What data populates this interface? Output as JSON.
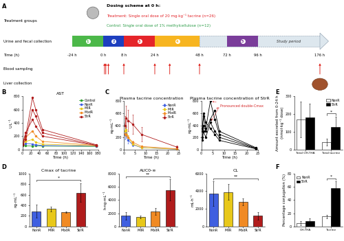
{
  "diagram": {
    "panel": "A",
    "header": "Dosing scheme at 0 h:",
    "treatment": {
      "text": "Treatment: Single oral dose of 20 mg·kg⁻¹ tacrine (n=26)",
      "color": "#e3262b"
    },
    "control": {
      "text": "Control: Single oral dose of 1% methylcellulose (n=12)",
      "color": "#2e9e4a"
    },
    "row_labels": [
      "Treatment groups",
      "Urine and fecal collection",
      "Time (h)",
      "Blood sampling",
      "Liver collection"
    ],
    "time_points": [
      {
        "value": -24,
        "label": "-24 h"
      },
      {
        "value": 0,
        "label": "0 h"
      },
      {
        "value": 8,
        "label": "8 h"
      },
      {
        "value": 24,
        "label": "24 h"
      },
      {
        "value": 48,
        "label": "48 h"
      },
      {
        "value": 72,
        "label": "72 h"
      },
      {
        "value": 96,
        "label": "96 h"
      },
      {
        "value": 176,
        "label": "176 h"
      }
    ],
    "segments": [
      {
        "label": "1",
        "start": -24,
        "end": 0,
        "color": "#4cb849"
      },
      {
        "label": "2",
        "start": 0,
        "end": 8,
        "color": "#1d3fbf"
      },
      {
        "label": "3",
        "start": 8,
        "end": 24,
        "color": "#e5252a"
      },
      {
        "label": "4",
        "start": 24,
        "end": 48,
        "color": "#f7b520"
      },
      {
        "label": "5",
        "start": 72,
        "end": 96,
        "color": "#7a3d9a"
      }
    ],
    "study_period": {
      "label": "Study period",
      "start": 48,
      "end": 176,
      "color": "#dde7ee"
    },
    "blood_sampling_h": [
      0.5,
      1,
      2,
      8,
      24,
      32,
      48,
      176
    ],
    "liver_collection_h": 176
  },
  "chart_data": [
    {
      "panel": "B",
      "type": "line",
      "title": "AST",
      "x_label": "Time (h)",
      "y_label": "U·L⁻¹",
      "xlim": [
        0,
        180
      ],
      "xticks": [
        0,
        20,
        40,
        60,
        80,
        100,
        120,
        140,
        160,
        180
      ],
      "ylim": [
        0,
        800
      ],
      "yticks": [
        0,
        200,
        400,
        600,
        800
      ],
      "legend": "upper right",
      "marker": "circle",
      "series": [
        {
          "name": "Control",
          "color": "#2ca02c",
          "x": [
            0,
            8,
            24,
            32,
            48,
            176
          ],
          "values": [
            60,
            55,
            50,
            55,
            50,
            45
          ]
        },
        {
          "name": "NonR",
          "color": "#3f5fe0",
          "x": [
            0,
            8,
            24,
            32,
            48,
            176
          ],
          "values": [
            70,
            90,
            80,
            70,
            60,
            50
          ]
        },
        {
          "name": "MilR",
          "color": "#e8c81a",
          "x": [
            0,
            8,
            24,
            32,
            48,
            176
          ],
          "values": [
            80,
            120,
            150,
            110,
            80,
            55
          ]
        },
        {
          "name": "ModR",
          "color": "#f08a24",
          "x": [
            0,
            8,
            24,
            32,
            48,
            176
          ],
          "values": [
            90,
            180,
            280,
            200,
            120,
            60
          ]
        },
        {
          "name": "StrR",
          "color": "#b01c1c",
          "x": [
            0,
            8,
            24,
            32,
            48,
            176
          ],
          "values": [
            80,
            200,
            780,
            600,
            300,
            70
          ]
        },
        {
          "name": "StrR",
          "color": "#b01c1c",
          "x": [
            0,
            8,
            24,
            32,
            48,
            176
          ],
          "values": [
            70,
            150,
            600,
            500,
            250,
            60
          ]
        },
        {
          "name": "StrR",
          "color": "#b01c1c",
          "x": [
            0,
            8,
            24,
            32,
            48,
            176
          ],
          "values": [
            75,
            250,
            450,
            350,
            200,
            60
          ]
        }
      ]
    },
    {
      "panel": "C",
      "type": "line",
      "title": "Plasma tacrine concentration",
      "x_label": "Time (h)",
      "y_label": "ng·mL⁻¹",
      "xlim": [
        0,
        25
      ],
      "xticks": [
        0,
        5,
        10,
        15,
        20,
        25
      ],
      "ylim": [
        0,
        800
      ],
      "yticks": [
        0,
        200,
        400,
        600,
        800
      ],
      "legend": "upper right",
      "marker": "circle",
      "series": [
        {
          "name": "NonR",
          "color": "#3f5fe0",
          "x": [
            0.5,
            1,
            2,
            4,
            8,
            24
          ],
          "values": [
            250,
            280,
            150,
            80,
            30,
            5
          ],
          "errors": [
            80,
            90,
            50,
            30,
            10,
            2
          ]
        },
        {
          "name": "MilR",
          "color": "#e8c81a",
          "x": [
            0.5,
            1,
            2,
            4,
            8,
            24
          ],
          "values": [
            300,
            330,
            200,
            90,
            30,
            5
          ],
          "errors": [
            60,
            50,
            40,
            20,
            10,
            2
          ]
        },
        {
          "name": "ModR",
          "color": "#f08a24",
          "x": [
            0.5,
            1,
            2,
            4,
            8,
            24
          ],
          "values": [
            260,
            250,
            200,
            120,
            50,
            10
          ],
          "errors": [
            40,
            40,
            30,
            20,
            10,
            3
          ]
        },
        {
          "name": "StrR",
          "color": "#b01c1c",
          "x": [
            0.5,
            1,
            2,
            4,
            8,
            24
          ],
          "values": [
            400,
            520,
            480,
            420,
            250,
            40
          ],
          "errors": [
            150,
            200,
            180,
            160,
            120,
            20
          ]
        }
      ]
    },
    {
      "type": "line",
      "title": "Plasma tacrine concentration of StrR",
      "x_label": "Time (h)",
      "y_label": "ng·mL⁻¹",
      "xlim": [
        0,
        25
      ],
      "xticks": [
        0,
        5,
        10,
        15,
        20,
        25
      ],
      "ylim": [
        0,
        800
      ],
      "yticks": [
        0,
        200,
        400,
        600,
        800
      ],
      "marker": "circle",
      "annotation": {
        "text": "Pronounced double-Cmax",
        "color": "#d62728"
      },
      "series": [
        {
          "color": "#000000",
          "x": [
            0.5,
            1,
            2,
            4,
            6,
            8,
            24
          ],
          "values": [
            300,
            550,
            350,
            800,
            500,
            250,
            20
          ]
        },
        {
          "color": "#000000",
          "x": [
            0.5,
            1,
            2,
            4,
            6,
            8,
            24
          ],
          "values": [
            200,
            400,
            300,
            500,
            650,
            300,
            30
          ]
        },
        {
          "color": "#000000",
          "x": [
            0.5,
            1,
            2,
            4,
            6,
            8,
            24
          ],
          "values": [
            350,
            600,
            450,
            350,
            250,
            150,
            10
          ]
        },
        {
          "color": "#000000",
          "x": [
            0.5,
            1,
            2,
            4,
            6,
            8,
            24
          ],
          "values": [
            150,
            300,
            200,
            450,
            300,
            200,
            15
          ]
        }
      ]
    },
    {
      "panel": "D",
      "type": "bar",
      "title": "Cmax of tacrine",
      "y_label": "ng·mL⁻¹",
      "categories": [
        "NonR",
        "MilR",
        "ModR",
        "StrR"
      ],
      "values": [
        290,
        330,
        270,
        640
      ],
      "errors": [
        120,
        50,
        10,
        180
      ],
      "colors": [
        "#3f5fe0",
        "#e8c81a",
        "#f08a24",
        "#b01c1c"
      ],
      "ylim": [
        0,
        1000
      ],
      "yticks": [
        0,
        200,
        400,
        600,
        800,
        1000
      ],
      "annotations": [
        {
          "text": "*",
          "categories": [
            "NonR",
            "StrR"
          ]
        }
      ]
    },
    {
      "type": "bar",
      "title": "AUC0-∞",
      "y_label": "h·ng·mL⁻¹",
      "categories": [
        "NonR",
        "MilR",
        "ModR",
        "StrR"
      ],
      "values": [
        1600,
        1450,
        2300,
        5500
      ],
      "errors": [
        600,
        200,
        500,
        1600
      ],
      "colors": [
        "#3f5fe0",
        "#e8c81a",
        "#f08a24",
        "#b01c1c"
      ],
      "ylim": [
        0,
        8000
      ],
      "yticks": [
        0,
        2000,
        4000,
        6000,
        8000
      ],
      "annotations": [
        {
          "text": "**",
          "categories": [
            "NonR",
            "StrR"
          ]
        }
      ]
    },
    {
      "type": "bar",
      "title": "CL",
      "y_label": "mL·h⁻¹",
      "categories": [
        "NonR",
        "MilR",
        "ModR",
        "StrR"
      ],
      "values": [
        3700,
        3900,
        2800,
        1200
      ],
      "errors": [
        1400,
        900,
        400,
        400
      ],
      "colors": [
        "#3f5fe0",
        "#e8c81a",
        "#f08a24",
        "#b01c1c"
      ],
      "ylim": [
        0,
        6000
      ],
      "yticks": [
        0,
        2000,
        4000,
        6000
      ],
      "annotations": [
        {
          "text": "**",
          "categories": [
            "NonR",
            "StrR"
          ]
        }
      ]
    },
    {
      "panel": "E",
      "type": "bar",
      "y_label": "Amount excreted from 0-24 h\n(nmol·kg⁻¹ dose)",
      "categories": [
        "Total OH-THA",
        "Total tacrine"
      ],
      "legend": "upper right",
      "series": [
        {
          "name": "NonR",
          "color": "#ffffff",
          "values": [
            170,
            40
          ],
          "errors": [
            100,
            20
          ]
        },
        {
          "name": "StrR",
          "color": "#000000",
          "values": [
            180,
            125
          ],
          "errors": [
            80,
            60
          ]
        }
      ],
      "ylim": [
        0,
        300
      ],
      "yticks": [
        0,
        100,
        200,
        300
      ],
      "annotations": [
        {
          "text": "*",
          "categories": [
            "Total tacrine"
          ]
        }
      ]
    },
    {
      "panel": "F",
      "type": "bar",
      "y_label": "Percentage conjugation (%)",
      "categories": [
        "OH-THA",
        "Tacrine"
      ],
      "legend": "upper left",
      "series": [
        {
          "name": "NonR",
          "color": "#ffffff",
          "values": [
            5,
            15
          ],
          "errors": [
            3,
            3
          ]
        },
        {
          "name": "StrR",
          "color": "#000000",
          "values": [
            8,
            58
          ],
          "errors": [
            4,
            10
          ]
        }
      ],
      "ylim": [
        0,
        80
      ],
      "yticks": [
        0,
        20,
        40,
        60,
        80
      ],
      "annotations": [
        {
          "text": "*",
          "categories": [
            "Tacrine"
          ]
        }
      ]
    }
  ]
}
